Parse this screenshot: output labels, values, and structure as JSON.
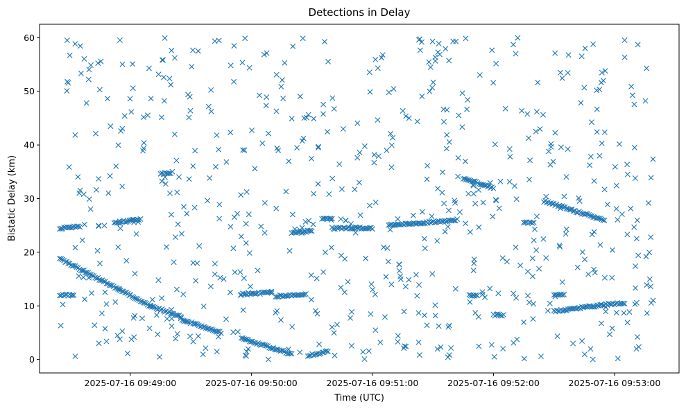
{
  "chart_data": {
    "type": "scatter",
    "title": "Detections in Delay",
    "xlabel": "Time (UTC)",
    "ylabel": "Bistatic Delay (km)",
    "marker": "x",
    "color": "#1f77b4",
    "grid": false,
    "x_start": "2025-07-16 09:48:25",
    "x_end": "2025-07-16 09:53:20",
    "xlim": [
      "2025-07-16 09:48:15",
      "2025-07-16 09:53:32"
    ],
    "ylim": [
      -2.5,
      62.5
    ],
    "xticks": [
      {
        "time": "2025-07-16 09:49:00",
        "label": "2025-07-16 09:49:00"
      },
      {
        "time": "2025-07-16 09:50:00",
        "label": "2025-07-16 09:50:00"
      },
      {
        "time": "2025-07-16 09:51:00",
        "label": "2025-07-16 09:51:00"
      },
      {
        "time": "2025-07-16 09:52:00",
        "label": "2025-07-16 09:52:00"
      },
      {
        "time": "2025-07-16 09:53:00",
        "label": "2025-07-16 09:53:00"
      }
    ],
    "yticks": [
      0,
      10,
      20,
      30,
      40,
      50,
      60
    ],
    "ytick_labels": [
      "0",
      "10",
      "20",
      "30",
      "40",
      "50",
      "60"
    ],
    "tracks": [
      {
        "x_start": "2025-07-16 09:48:25",
        "x_end": "2025-07-16 09:49:10",
        "y_start": 18.8,
        "y_end": 10.0
      },
      {
        "x_start": "2025-07-16 09:49:10",
        "x_end": "2025-07-16 09:49:25",
        "y_start": 10.0,
        "y_end": 8.0
      },
      {
        "x_start": "2025-07-16 09:49:25",
        "x_end": "2025-07-16 09:49:45",
        "y_start": 7.5,
        "y_end": 5.0
      },
      {
        "x_start": "2025-07-16 09:49:55",
        "x_end": "2025-07-16 09:50:20",
        "y_start": 4.0,
        "y_end": 1.0
      },
      {
        "x_start": "2025-07-16 09:50:28",
        "x_end": "2025-07-16 09:50:38",
        "y_start": 0.7,
        "y_end": 1.5
      },
      {
        "x_start": "2025-07-16 09:48:25",
        "x_end": "2025-07-16 09:48:35",
        "y_start": 24.5,
        "y_end": 24.8
      },
      {
        "x_start": "2025-07-16 09:48:25",
        "x_end": "2025-07-16 09:48:32",
        "y_start": 12.0,
        "y_end": 12.0
      },
      {
        "x_start": "2025-07-16 09:48:52",
        "x_end": "2025-07-16 09:49:05",
        "y_start": 25.5,
        "y_end": 26.2
      },
      {
        "x_start": "2025-07-16 09:49:15",
        "x_end": "2025-07-16 09:49:20",
        "y_start": 34.7,
        "y_end": 34.7
      },
      {
        "x_start": "2025-07-16 09:49:55",
        "x_end": "2025-07-16 09:50:10",
        "y_start": 12.2,
        "y_end": 12.5
      },
      {
        "x_start": "2025-07-16 09:50:12",
        "x_end": "2025-07-16 09:50:27",
        "y_start": 11.8,
        "y_end": 12.2
      },
      {
        "x_start": "2025-07-16 09:50:20",
        "x_end": "2025-07-16 09:50:30",
        "y_start": 23.5,
        "y_end": 24.0
      },
      {
        "x_start": "2025-07-16 09:50:35",
        "x_end": "2025-07-16 09:50:40",
        "y_start": 26.3,
        "y_end": 26.3
      },
      {
        "x_start": "2025-07-16 09:50:40",
        "x_end": "2025-07-16 09:51:00",
        "y_start": 24.5,
        "y_end": 24.5
      },
      {
        "x_start": "2025-07-16 09:51:08",
        "x_end": "2025-07-16 09:51:42",
        "y_start": 25.0,
        "y_end": 26.0
      },
      {
        "x_start": "2025-07-16 09:51:45",
        "x_end": "2025-07-16 09:52:00",
        "y_start": 33.8,
        "y_end": 32.0
      },
      {
        "x_start": "2025-07-16 09:51:48",
        "x_end": "2025-07-16 09:51:52",
        "y_start": 12.0,
        "y_end": 12.0
      },
      {
        "x_start": "2025-07-16 09:52:00",
        "x_end": "2025-07-16 09:52:05",
        "y_start": 8.3,
        "y_end": 8.3
      },
      {
        "x_start": "2025-07-16 09:52:15",
        "x_end": "2025-07-16 09:52:20",
        "y_start": 25.5,
        "y_end": 25.5
      },
      {
        "x_start": "2025-07-16 09:52:25",
        "x_end": "2025-07-16 09:52:55",
        "y_start": 29.5,
        "y_end": 26.0
      },
      {
        "x_start": "2025-07-16 09:52:30",
        "x_end": "2025-07-16 09:52:55",
        "y_start": 9.0,
        "y_end": 10.2
      },
      {
        "x_start": "2025-07-16 09:52:55",
        "x_end": "2025-07-16 09:53:05",
        "y_start": 10.2,
        "y_end": 10.5
      },
      {
        "x_start": "2025-07-16 09:52:30",
        "x_end": "2025-07-16 09:52:35",
        "y_start": 12.0,
        "y_end": 12.0
      }
    ],
    "clutter": {
      "count": 640,
      "y_range": [
        0,
        60
      ],
      "note": "uniform random false detections"
    }
  }
}
